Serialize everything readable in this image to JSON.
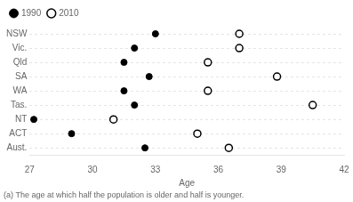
{
  "chart_data": {
    "type": "scatter",
    "orientation": "horizontal",
    "categories": [
      "NSW",
      "Vic.",
      "Qld",
      "SA",
      "WA",
      "Tas.",
      "NT",
      "ACT",
      "Aust."
    ],
    "series": [
      {
        "name": "1990",
        "color": "#000000",
        "marker": "filled_circle",
        "values": [
          33.0,
          32.0,
          31.5,
          32.7,
          31.5,
          32.0,
          27.2,
          29.0,
          32.5
        ]
      },
      {
        "name": "2010",
        "color": "#000000",
        "marker": "open_circle",
        "values": [
          37.0,
          37.0,
          35.5,
          38.8,
          35.5,
          40.5,
          31.0,
          35.0,
          36.5
        ]
      }
    ],
    "xlabel": "Age",
    "xlim": [
      27,
      42
    ],
    "xticks": [
      27,
      30,
      33,
      36,
      39,
      42
    ],
    "grid": "y",
    "legend": "upper left",
    "annotations": [
      "(a) The age at which half the population is older and half is younger."
    ]
  }
}
